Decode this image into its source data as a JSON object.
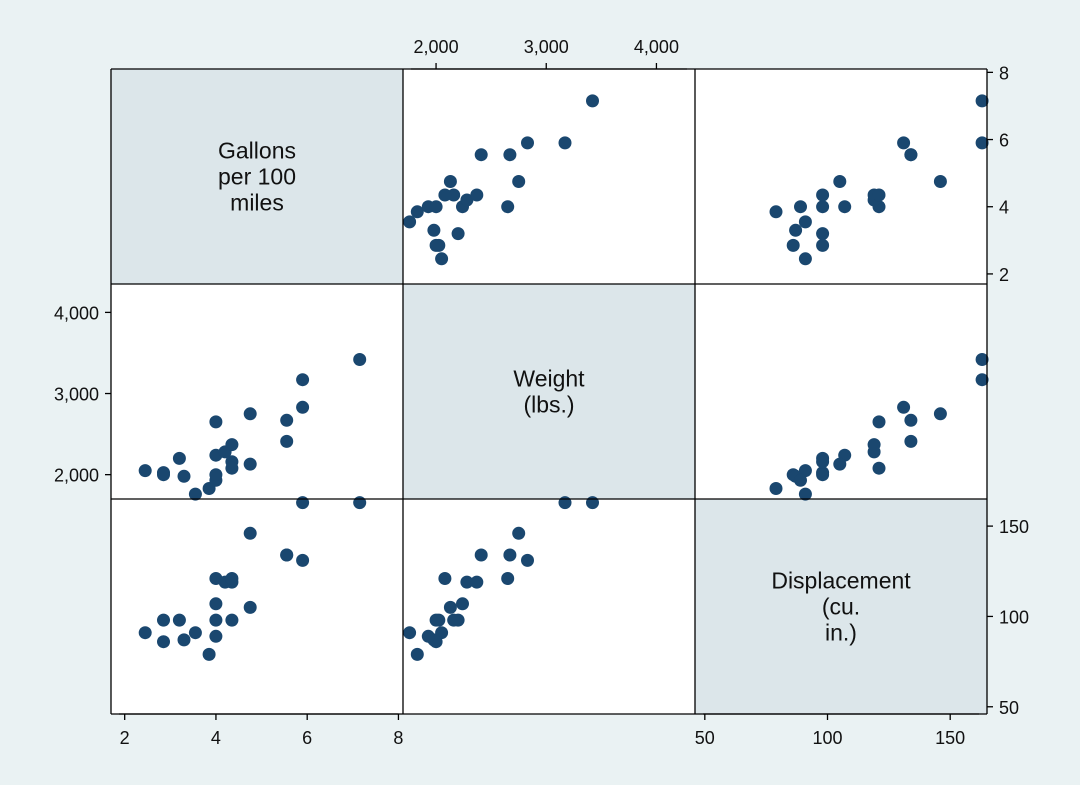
{
  "chart_data": {
    "type": "scatter-matrix",
    "variables": [
      {
        "key": "gpm",
        "label_lines": [
          "Gallons",
          "per 100",
          "miles"
        ]
      },
      {
        "key": "weight",
        "label_lines": [
          "Weight",
          "(lbs.)"
        ]
      },
      {
        "key": "displacement",
        "label_lines": [
          "Displacement",
          "(cu.",
          "in.)"
        ]
      }
    ],
    "axes": {
      "gpm": {
        "range": [
          1.7,
          8.1
        ],
        "ticks": [
          2,
          4,
          6,
          8
        ],
        "tick_labels": [
          "2",
          "4",
          "6",
          "8"
        ]
      },
      "weight": {
        "range": [
          1700,
          4350
        ],
        "ticks": [
          2000,
          3000,
          4000
        ],
        "tick_labels": [
          "2,000",
          "3,000",
          "4,000"
        ]
      },
      "displacement": {
        "range": [
          46,
          165
        ],
        "ticks": [
          50,
          100,
          150
        ],
        "tick_labels": [
          "50",
          "100",
          "150"
        ]
      }
    },
    "axis_placement": {
      "top": {
        "column": "weight"
      },
      "right_top": {
        "row": "gpm"
      },
      "left_middle": {
        "row": "weight"
      },
      "right_bottom": {
        "row": "displacement"
      },
      "bottom_left": {
        "column": "gpm"
      },
      "bottom_right": {
        "column": "displacement"
      }
    },
    "observations": [
      {
        "gpm": 2.45,
        "weight": 2050,
        "displacement": 91
      },
      {
        "gpm": 2.85,
        "weight": 2025,
        "displacement": 98
      },
      {
        "gpm": 2.85,
        "weight": 2000,
        "displacement": 86
      },
      {
        "gpm": 3.2,
        "weight": 2200,
        "displacement": 98
      },
      {
        "gpm": 3.3,
        "weight": 1980,
        "displacement": 87
      },
      {
        "gpm": 3.55,
        "weight": 1760,
        "displacement": 91
      },
      {
        "gpm": 3.85,
        "weight": 1830,
        "displacement": 79
      },
      {
        "gpm": 4.0,
        "weight": 1930,
        "displacement": 89
      },
      {
        "gpm": 4.0,
        "weight": 2000,
        "displacement": 98
      },
      {
        "gpm": 4.0,
        "weight": 2240,
        "displacement": 107
      },
      {
        "gpm": 4.0,
        "weight": 2650,
        "displacement": 121
      },
      {
        "gpm": 4.2,
        "weight": 2280,
        "displacement": 119
      },
      {
        "gpm": 4.35,
        "weight": 2370,
        "displacement": 119
      },
      {
        "gpm": 4.35,
        "weight": 2160,
        "displacement": 98
      },
      {
        "gpm": 4.35,
        "weight": 2080,
        "displacement": 121
      },
      {
        "gpm": 4.75,
        "weight": 2750,
        "displacement": 146
      },
      {
        "gpm": 4.75,
        "weight": 2130,
        "displacement": 105
      },
      {
        "gpm": 5.55,
        "weight": 2670,
        "displacement": 134
      },
      {
        "gpm": 5.55,
        "weight": 2410,
        "displacement": 134
      },
      {
        "gpm": 5.9,
        "weight": 2830,
        "displacement": 131
      },
      {
        "gpm": 5.9,
        "weight": 3170,
        "displacement": 163
      },
      {
        "gpm": 7.15,
        "weight": 3420,
        "displacement": 163
      }
    ],
    "title": "",
    "legend": "none",
    "grid": false
  }
}
